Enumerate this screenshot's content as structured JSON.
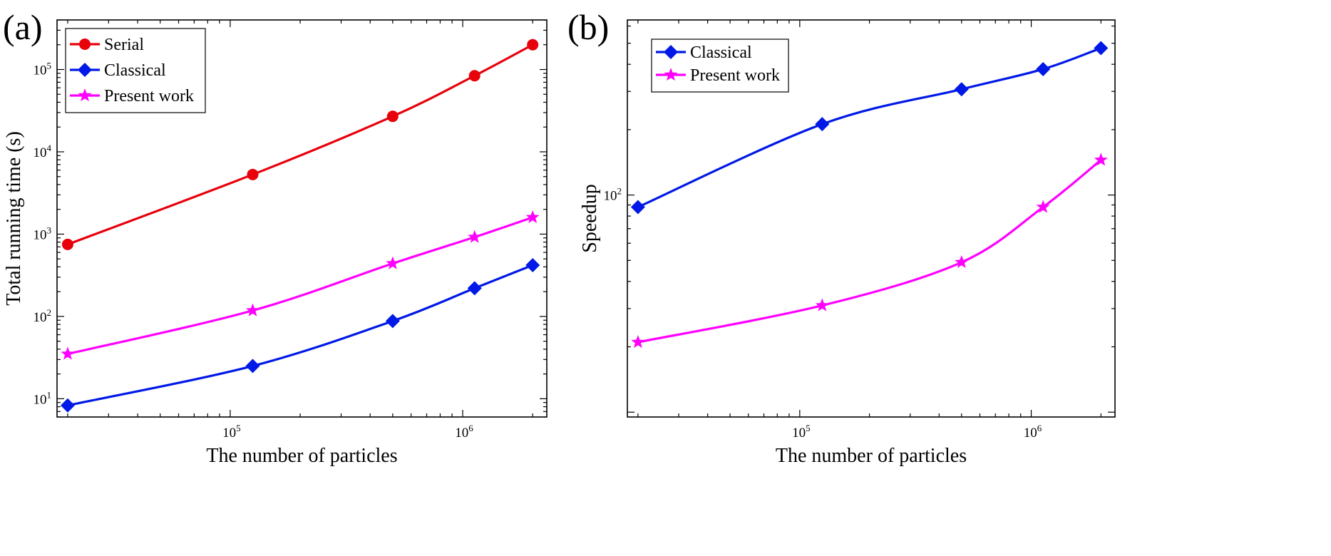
{
  "chart_data": [
    {
      "panel": "(a)",
      "type": "line",
      "xlabel": "The number of particles",
      "ylabel": "Total running time (s)",
      "xscale": "log",
      "yscale": "log",
      "xlim": [
        18000,
        2300000
      ],
      "ylim": [
        6,
        400000
      ],
      "xticks": [
        {
          "value": 100000,
          "base": "10",
          "exp": "5"
        },
        {
          "value": 1000000,
          "base": "10",
          "exp": "6"
        }
      ],
      "yticks": [
        {
          "value": 10,
          "base": "10",
          "exp": "1"
        },
        {
          "value": 100,
          "base": "10",
          "exp": "2"
        },
        {
          "value": 1000,
          "base": "10",
          "exp": "3"
        },
        {
          "value": 10000,
          "base": "10",
          "exp": "4"
        },
        {
          "value": 100000,
          "base": "10",
          "exp": "5"
        }
      ],
      "legend_position": "top-left",
      "x": [
        20000,
        125000,
        500000,
        1125000,
        2000000
      ],
      "series": [
        {
          "name": "Serial",
          "color": "#e8000b",
          "marker": "circle",
          "values": [
            750,
            5300,
            27000,
            84000,
            200000
          ]
        },
        {
          "name": "Classical",
          "color": "#0019e6",
          "marker": "diamond",
          "values": [
            8.3,
            25,
            88,
            220,
            420
          ]
        },
        {
          "name": "Present work",
          "color": "#ff00ff",
          "marker": "star",
          "values": [
            35,
            118,
            440,
            920,
            1600
          ]
        }
      ]
    },
    {
      "panel": "(b)",
      "type": "line",
      "xlabel": "The number of particles",
      "ylabel": "Speedup",
      "xscale": "log",
      "yscale": "log",
      "xlim": [
        18000,
        2300000
      ],
      "ylim": [
        9.5,
        640
      ],
      "xticks": [
        {
          "value": 100000,
          "base": "10",
          "exp": "5"
        },
        {
          "value": 1000000,
          "base": "10",
          "exp": "6"
        }
      ],
      "yticks": [
        {
          "value": 100,
          "base": "10",
          "exp": "2"
        }
      ],
      "legend_position": "top-left",
      "x": [
        20000,
        125000,
        500000,
        1125000,
        2000000
      ],
      "series": [
        {
          "name": "Classical",
          "color": "#0019e6",
          "marker": "diamond",
          "values": [
            88,
            212,
            307,
            380,
            475
          ]
        },
        {
          "name": "Present work",
          "color": "#ff00ff",
          "marker": "star",
          "values": [
            21,
            31,
            49,
            88,
            145
          ]
        }
      ]
    }
  ]
}
